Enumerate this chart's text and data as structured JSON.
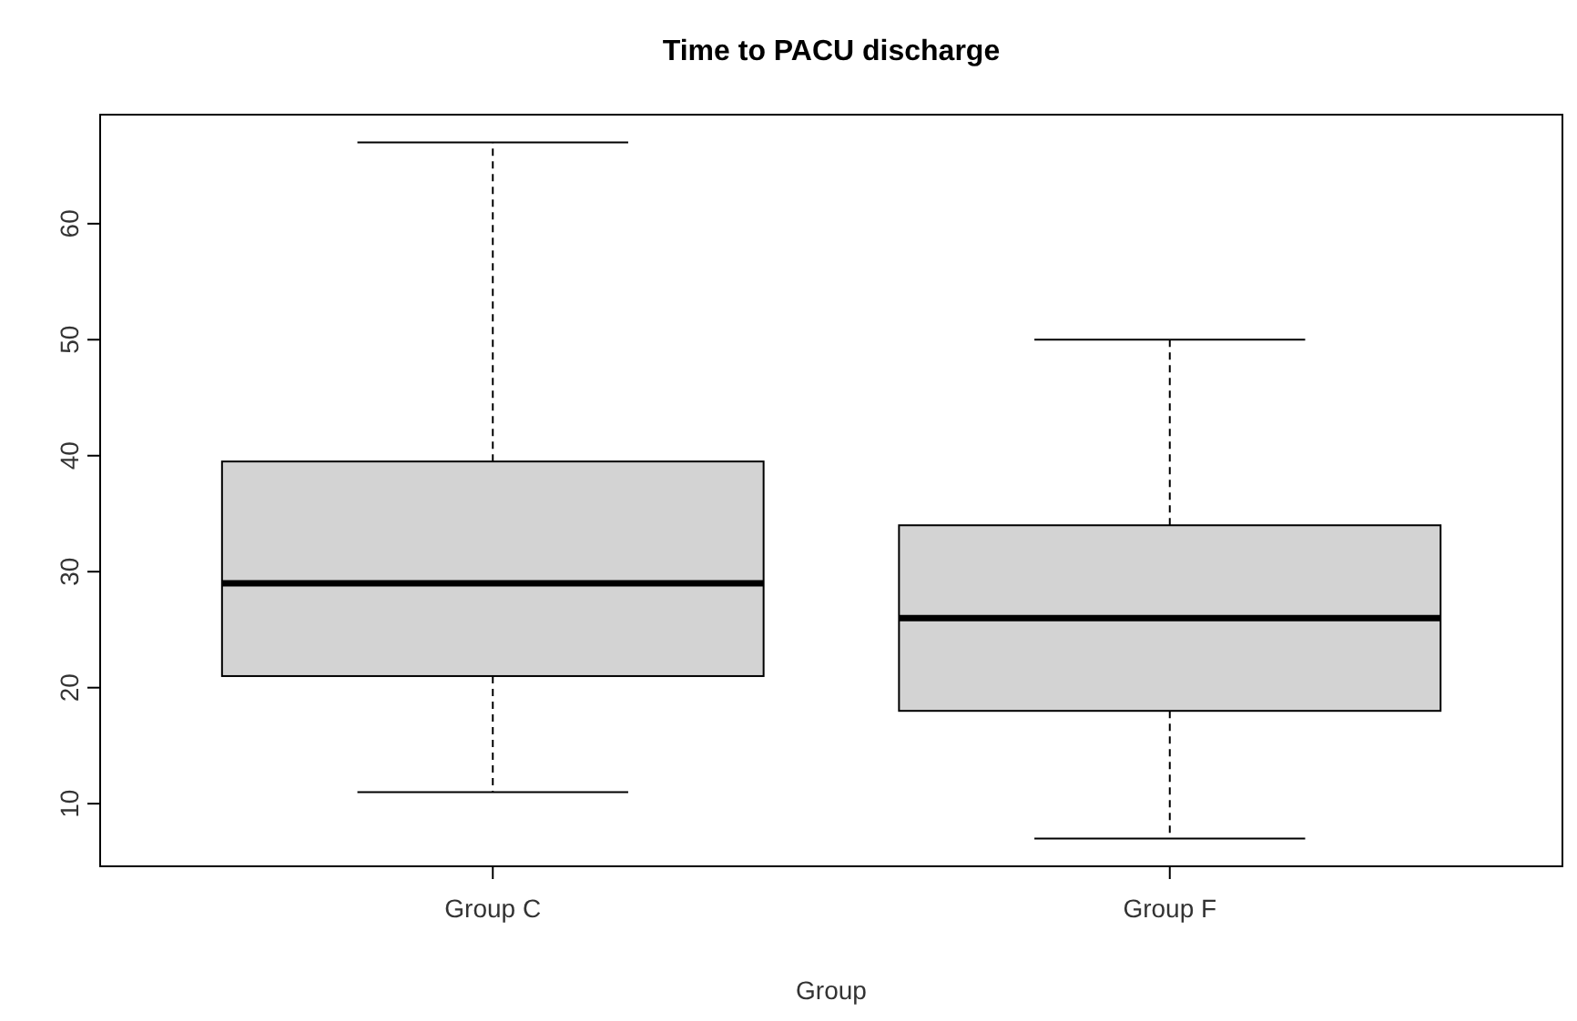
{
  "chart_data": {
    "type": "box",
    "title": "Time to PACU discharge",
    "xlabel": "Group",
    "categories": [
      "Group C",
      "Group F"
    ],
    "color": "#d3d3d3",
    "boxes": [
      {
        "low": 11,
        "q1": 21,
        "median": 29,
        "q3": 39.5,
        "high": 67
      },
      {
        "low": 7,
        "q1": 18,
        "median": 26,
        "q3": 34,
        "high": 50
      }
    ],
    "ylim": [
      4.6,
      69.4
    ],
    "yticks": [
      10,
      20,
      30,
      40,
      50,
      60
    ],
    "grid": false
  }
}
